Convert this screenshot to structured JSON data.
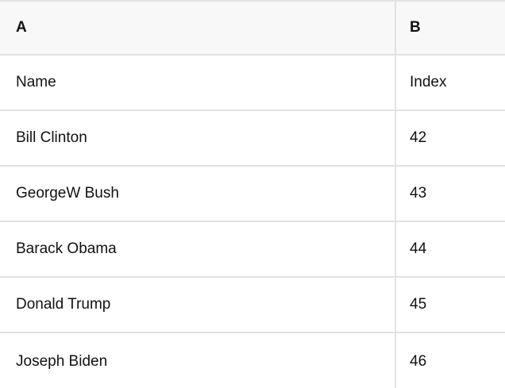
{
  "theme": {
    "header_bg": "#f8f8f8",
    "row_bg": "#ffffff",
    "border_color": "#e2e2e2",
    "text_color": "#121212"
  },
  "table": {
    "column_headers": [
      {
        "label": "A"
      },
      {
        "label": "B"
      }
    ],
    "rows": [
      {
        "a": "Name",
        "b": "Index"
      },
      {
        "a": "Bill Clinton",
        "b": "42"
      },
      {
        "a": "GeorgeW Bush",
        "b": "43"
      },
      {
        "a": "Barack Obama",
        "b": "44"
      },
      {
        "a": "Donald Trump",
        "b": "45"
      },
      {
        "a": "Joseph Biden",
        "b": "46"
      }
    ]
  }
}
